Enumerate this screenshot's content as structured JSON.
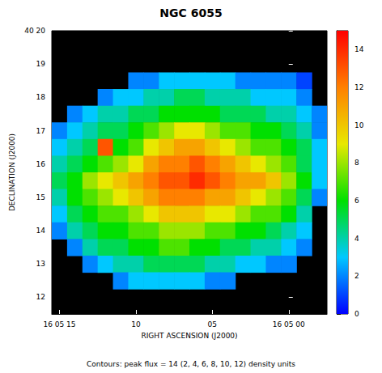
{
  "chart_data": {
    "type": "heatmap",
    "title": "NGC 6055",
    "subtitle": "Contours: peak flux = 14 (2, 4, 6, 8, 10, 12) density units",
    "x_label": "RIGHT ASCENSION (J2000)",
    "y_label": "DECLINATION (J2000)",
    "x": [
      15,
      14,
      13,
      12,
      11,
      10,
      9,
      8,
      7,
      6,
      5,
      4,
      3,
      2,
      1,
      0,
      -1,
      -2
    ],
    "y": [
      18.5,
      18,
      17.5,
      17,
      16.5,
      16,
      15.5,
      15,
      14.5,
      14,
      13.5,
      13,
      12.5
    ],
    "values": [
      [
        null,
        null,
        null,
        null,
        null,
        2,
        2,
        3,
        3,
        3,
        3,
        3,
        2,
        2,
        2,
        2,
        1,
        null
      ],
      [
        null,
        null,
        null,
        2,
        3,
        3,
        4,
        4,
        5,
        5,
        4,
        4,
        4,
        3,
        3,
        3,
        2,
        null
      ],
      [
        null,
        2,
        3,
        4,
        4,
        5,
        5,
        6,
        6,
        6,
        6,
        5,
        5,
        5,
        4,
        4,
        3,
        2
      ],
      [
        2,
        3,
        4,
        5,
        5,
        6,
        7,
        8,
        9,
        9,
        8,
        7,
        7,
        6,
        6,
        5,
        4,
        2
      ],
      [
        3,
        4,
        5,
        13,
        6,
        7,
        9,
        10,
        11,
        11,
        10,
        9,
        8,
        7,
        7,
        6,
        5,
        3
      ],
      [
        4,
        5,
        6,
        7,
        8,
        9,
        11,
        12,
        12,
        13,
        12,
        11,
        10,
        9,
        8,
        7,
        5,
        3
      ],
      [
        5,
        6,
        8,
        9,
        10,
        11,
        12,
        13,
        13,
        14,
        13,
        12,
        11,
        11,
        10,
        8,
        6,
        3
      ],
      [
        4,
        6,
        7,
        8,
        9,
        10,
        11,
        12,
        12,
        12,
        11,
        11,
        10,
        9,
        8,
        7,
        5,
        2
      ],
      [
        3,
        5,
        6,
        7,
        7,
        8,
        9,
        10,
        10,
        10,
        9,
        9,
        8,
        7,
        7,
        6,
        4,
        null
      ],
      [
        2,
        4,
        5,
        6,
        6,
        7,
        7,
        8,
        8,
        8,
        7,
        7,
        6,
        6,
        5,
        4,
        3,
        null
      ],
      [
        null,
        2,
        4,
        5,
        5,
        6,
        6,
        7,
        7,
        6,
        6,
        5,
        5,
        4,
        4,
        3,
        2,
        null
      ],
      [
        null,
        null,
        2,
        3,
        4,
        4,
        5,
        5,
        5,
        5,
        4,
        4,
        3,
        3,
        2,
        2,
        null,
        null
      ],
      [
        null,
        null,
        null,
        null,
        2,
        3,
        3,
        3,
        3,
        3,
        2,
        2,
        null,
        null,
        null,
        null,
        null,
        null
      ]
    ],
    "xlim": [
      -2.5,
      15.5
    ],
    "xticks": [
      {
        "value": 15,
        "label": "16 05 15"
      },
      10,
      {
        "value": 5,
        "label": "05"
      },
      {
        "value": 0,
        "label": "16 05 00"
      }
    ],
    "ylim": [
      11.5,
      20
    ],
    "yticks": [
      12,
      13,
      14,
      15,
      16,
      17,
      18,
      19,
      {
        "value": 20,
        "label": "40 20"
      }
    ],
    "colorbar": {
      "range": [
        0,
        15
      ],
      "ticks": [
        0,
        2,
        4,
        6,
        8,
        10,
        12,
        14
      ]
    }
  }
}
